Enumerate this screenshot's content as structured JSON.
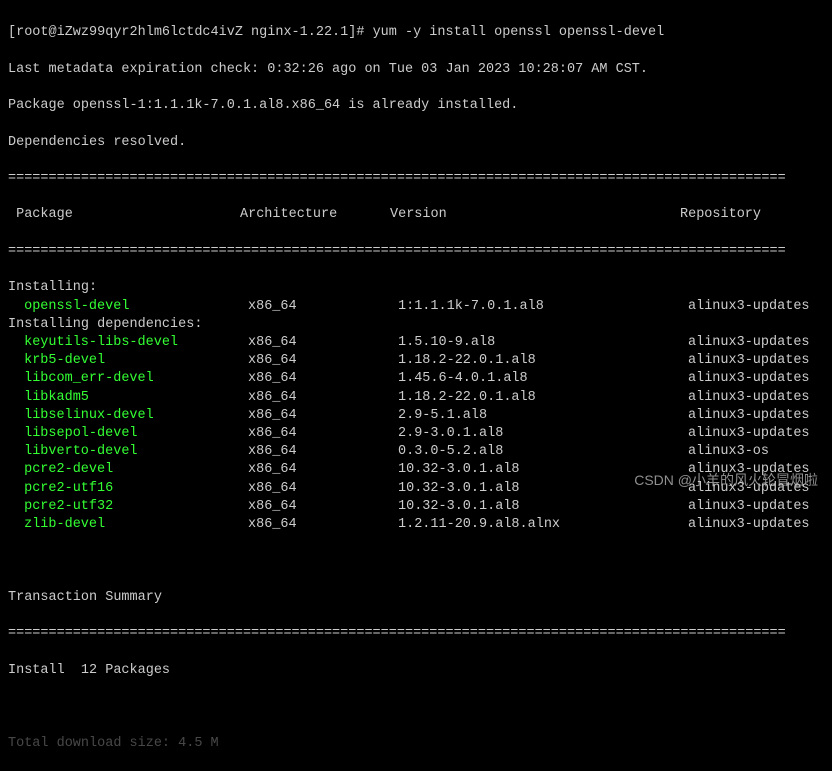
{
  "prompt": {
    "user_host": "[root@iZwz99qyr2hlm6lctdc4ivZ nginx-1.22.1]#",
    "command": "yum -y install openssl openssl-devel"
  },
  "pre_lines": [
    "Last metadata expiration check: 0:32:26 ago on Tue 03 Jan 2023 10:28:07 AM CST.",
    "Package openssl-1:1.1.1k-7.0.1.al8.x86_64 is already installed.",
    "Dependencies resolved."
  ],
  "divider": "================================================================================================",
  "headers": {
    "pkg": " Package",
    "arch": "Architecture",
    "ver": "Version",
    "repo": "Repository"
  },
  "sections": [
    {
      "title": "Installing:",
      "rows": [
        {
          "name": "openssl-devel",
          "arch": "x86_64",
          "ver": "1:1.1.1k-7.0.1.al8",
          "repo": "alinux3-updates"
        }
      ]
    },
    {
      "title": "Installing dependencies:",
      "rows": [
        {
          "name": "keyutils-libs-devel",
          "arch": "x86_64",
          "ver": "1.5.10-9.al8",
          "repo": "alinux3-updates"
        },
        {
          "name": "krb5-devel",
          "arch": "x86_64",
          "ver": "1.18.2-22.0.1.al8",
          "repo": "alinux3-updates"
        },
        {
          "name": "libcom_err-devel",
          "arch": "x86_64",
          "ver": "1.45.6-4.0.1.al8",
          "repo": "alinux3-updates"
        },
        {
          "name": "libkadm5",
          "arch": "x86_64",
          "ver": "1.18.2-22.0.1.al8",
          "repo": "alinux3-updates"
        },
        {
          "name": "libselinux-devel",
          "arch": "x86_64",
          "ver": "2.9-5.1.al8",
          "repo": "alinux3-updates"
        },
        {
          "name": "libsepol-devel",
          "arch": "x86_64",
          "ver": "2.9-3.0.1.al8",
          "repo": "alinux3-updates"
        },
        {
          "name": "libverto-devel",
          "arch": "x86_64",
          "ver": "0.3.0-5.2.al8",
          "repo": "alinux3-os"
        },
        {
          "name": "pcre2-devel",
          "arch": "x86_64",
          "ver": "10.32-3.0.1.al8",
          "repo": "alinux3-updates"
        },
        {
          "name": "pcre2-utf16",
          "arch": "x86_64",
          "ver": "10.32-3.0.1.al8",
          "repo": "alinux3-updates"
        },
        {
          "name": "pcre2-utf32",
          "arch": "x86_64",
          "ver": "10.32-3.0.1.al8",
          "repo": "alinux3-updates"
        },
        {
          "name": "zlib-devel",
          "arch": "x86_64",
          "ver": "1.2.11-20.9.al8.alnx",
          "repo": "alinux3-updates"
        }
      ]
    }
  ],
  "summary_title": "Transaction Summary",
  "summary_line": "Install  12 Packages",
  "cutoff_line": "Total download size: 4.5 M",
  "watermark": "CSDN @小羊的风火轮冒烟啦"
}
